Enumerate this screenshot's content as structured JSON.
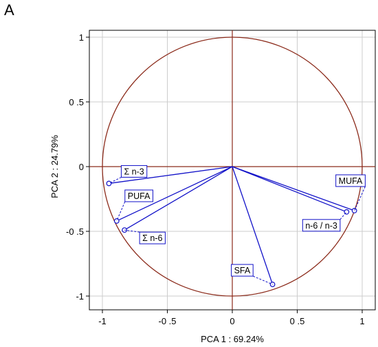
{
  "panel_label": "A",
  "colors": {
    "circle": "#8b2a1a",
    "vectors": "#1010c8",
    "grid": "#cccccc",
    "axes_lines": "#8b2a1a"
  },
  "chart_data": {
    "type": "scatter",
    "title": "",
    "xlabel": "PCA 1 : 69.24%",
    "ylabel": "PCA 2 : 24.79%",
    "xlim": [
      -1.1,
      1.1
    ],
    "ylim": [
      -1.1,
      1.1
    ],
    "xticks": [
      -1,
      -0.5,
      0,
      0.5,
      1
    ],
    "xtick_labels": [
      "-1",
      "-0 .5",
      "0",
      "0 .5",
      "1"
    ],
    "yticks": [
      1,
      0.5,
      0,
      -0.5,
      -1
    ],
    "ytick_labels": [
      "1",
      "0 .5",
      "0",
      "-0 .5",
      "-1"
    ],
    "grid": true,
    "unit_circle": true,
    "points": [
      {
        "label": "Σ n-3",
        "x": -0.95,
        "y": -0.13
      },
      {
        "label": "PUFA",
        "x": -0.89,
        "y": -0.42
      },
      {
        "label": "Σ n-6",
        "x": -0.83,
        "y": -0.49
      },
      {
        "label": "MUFA",
        "x": 0.94,
        "y": -0.34
      },
      {
        "label": "n-6 / n-3",
        "x": 0.88,
        "y": -0.35
      },
      {
        "label": "SFA",
        "x": 0.31,
        "y": -0.91
      }
    ]
  }
}
